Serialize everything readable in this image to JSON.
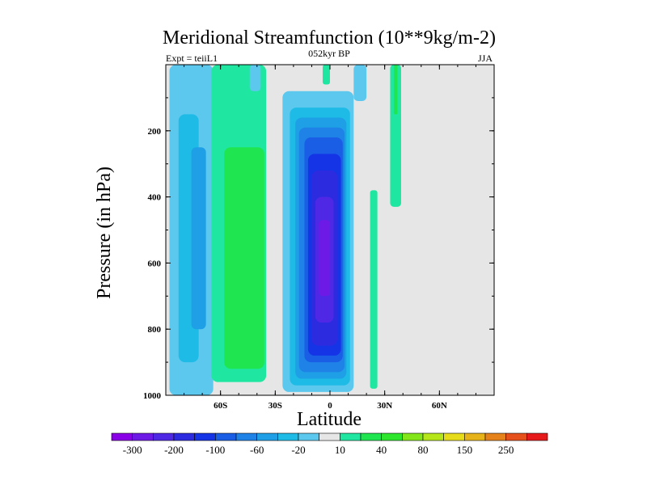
{
  "chart_data": {
    "type": "heatmap",
    "title": "Meridional Streamfunction (10**9kg/m-2)",
    "left_label": "Expt = teiiL1",
    "center_label": "052kyr BP",
    "right_label": "JJA",
    "xlabel": "Latitude",
    "ylabel": "Pressure (in hPa)",
    "xlim": [
      -90,
      90
    ],
    "ylim": [
      1000,
      0
    ],
    "x_ticks": [
      -60,
      -30,
      0,
      30,
      60
    ],
    "x_tick_labels": [
      "60S",
      "30S",
      "0",
      "30N",
      "60N"
    ],
    "y_ticks": [
      200,
      400,
      600,
      800,
      1000
    ],
    "y_tick_labels": [
      "200",
      "400",
      "600",
      "800",
      "1000"
    ],
    "levels": [
      -300,
      -250,
      -200,
      -150,
      -100,
      -80,
      -60,
      -40,
      -20,
      -10,
      10,
      20,
      40,
      60,
      80,
      100,
      150,
      200,
      250,
      300
    ],
    "colorbar_colors": [
      "#8a00e6",
      "#6e1ae6",
      "#4f28e6",
      "#2d2be0",
      "#1434e6",
      "#1a5ee6",
      "#1f82e6",
      "#1fa0e6",
      "#1ebbe6",
      "#5cc8ee",
      "#e6e6e6",
      "#1fe6a0",
      "#1fe650",
      "#2de62d",
      "#82e61a",
      "#b4e61a",
      "#e6dc1a",
      "#e6b41a",
      "#e6821a",
      "#e6501a",
      "#e61a1a"
    ],
    "colorbar_labels": [
      "-300",
      "-200",
      "-100",
      "-60",
      "-20",
      "10",
      "40",
      "80",
      "150",
      "250"
    ],
    "colorbar_label_levels": [
      -300,
      -200,
      -100,
      -60,
      -20,
      10,
      40,
      80,
      150,
      250
    ],
    "cells": [
      {
        "lat": [
          -88,
          -64
        ],
        "p": [
          0,
          1000
        ],
        "value": -15
      },
      {
        "lat": [
          -83,
          -72
        ],
        "p": [
          150,
          900
        ],
        "value": -30
      },
      {
        "lat": [
          -76,
          -68
        ],
        "p": [
          250,
          800
        ],
        "value": -45
      },
      {
        "lat": [
          -65,
          -35
        ],
        "p": [
          0,
          960
        ],
        "value": 15
      },
      {
        "lat": [
          -58,
          -36
        ],
        "p": [
          250,
          920
        ],
        "value": 25
      },
      {
        "lat": [
          -44,
          -38
        ],
        "p": [
          0,
          80
        ],
        "value": -15
      },
      {
        "lat": [
          -26,
          13
        ],
        "p": [
          80,
          990
        ],
        "value": -15
      },
      {
        "lat": [
          -22,
          11
        ],
        "p": [
          130,
          970
        ],
        "value": -30
      },
      {
        "lat": [
          -19,
          9
        ],
        "p": [
          160,
          950
        ],
        "value": -45
      },
      {
        "lat": [
          -17,
          8
        ],
        "p": [
          190,
          930
        ],
        "value": -70
      },
      {
        "lat": [
          -14,
          7
        ],
        "p": [
          220,
          900
        ],
        "value": -90
      },
      {
        "lat": [
          -12,
          6
        ],
        "p": [
          270,
          880
        ],
        "value": -130
      },
      {
        "lat": [
          -10,
          4
        ],
        "p": [
          320,
          850
        ],
        "value": -170
      },
      {
        "lat": [
          -8,
          2
        ],
        "p": [
          400,
          780
        ],
        "value": -230
      },
      {
        "lat": [
          -6,
          0
        ],
        "p": [
          470,
          700
        ],
        "value": -280
      },
      {
        "lat": [
          -4,
          0
        ],
        "p": [
          0,
          60
        ],
        "value": 15
      },
      {
        "lat": [
          13,
          20
        ],
        "p": [
          0,
          110
        ],
        "value": -15
      },
      {
        "lat": [
          22,
          26
        ],
        "p": [
          380,
          980
        ],
        "value": 15
      },
      {
        "lat": [
          33,
          39
        ],
        "p": [
          0,
          430
        ],
        "value": 15
      },
      {
        "lat": [
          35,
          37
        ],
        "p": [
          0,
          150
        ],
        "value": 25
      }
    ]
  }
}
